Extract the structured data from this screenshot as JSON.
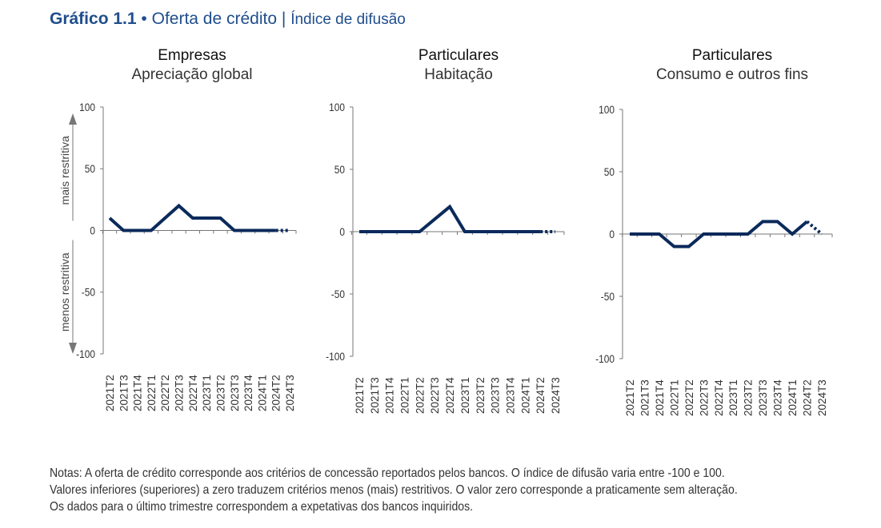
{
  "figure": {
    "number": "Gráfico 1.1",
    "bullet": "•",
    "title": "Oferta de crédito",
    "separator": "|",
    "subtitle": "Índice de difusão"
  },
  "axis_annotations": {
    "upper": "mais restritiva",
    "lower": "menos restritiva"
  },
  "chart_data": [
    {
      "type": "line",
      "title": "Empresas",
      "subtitle": "Apreciação global",
      "ylim": [
        -100,
        100
      ],
      "yticks": [
        100,
        50,
        0,
        -50,
        -100
      ],
      "categories": [
        "2021T2",
        "2021T3",
        "2021T4",
        "2022T1",
        "2022T2",
        "2022T3",
        "2022T4",
        "2023T1",
        "2023T2",
        "2023T3",
        "2023T4",
        "2024T1",
        "2024T2",
        "2024T3"
      ],
      "values": [
        10,
        0,
        0,
        0,
        10,
        20,
        10,
        10,
        10,
        0,
        0,
        0,
        0,
        0
      ],
      "last_point_expectation": true
    },
    {
      "type": "line",
      "title": "Particulares",
      "subtitle": "Habitação",
      "ylim": [
        -100,
        100
      ],
      "yticks": [
        100,
        50,
        0,
        -50,
        -100
      ],
      "categories": [
        "2021T2",
        "2021T3",
        "2021T4",
        "2022T1",
        "2022T2",
        "2022T3",
        "2022T4",
        "2023T1",
        "2023T2",
        "2023T3",
        "2023T4",
        "2024T1",
        "2024T2",
        "2024T3"
      ],
      "values": [
        0,
        0,
        0,
        0,
        0,
        10,
        20,
        0,
        0,
        0,
        0,
        0,
        0,
        0
      ],
      "last_point_expectation": true
    },
    {
      "type": "line",
      "title": "Particulares",
      "subtitle": "Consumo e outros fins",
      "ylim": [
        -100,
        100
      ],
      "yticks": [
        100,
        50,
        0,
        -50,
        -100
      ],
      "categories": [
        "2021T2",
        "2021T3",
        "2021T4",
        "2022T1",
        "2022T2",
        "2022T3",
        "2022T4",
        "2023T1",
        "2023T2",
        "2023T3",
        "2023T4",
        "2024T1",
        "2024T2",
        "2024T3"
      ],
      "values": [
        0,
        0,
        0,
        -10,
        -10,
        0,
        0,
        0,
        0,
        10,
        10,
        0,
        10,
        0
      ],
      "last_point_expectation": true
    }
  ],
  "colors": {
    "series": "#0b2a5b",
    "title": "#1f4e8c",
    "axis": "#777777"
  },
  "notes": [
    "Notas: A oferta de crédito corresponde aos critérios de concessão reportados pelos bancos. O índice de difusão varia entre -100 e 100.",
    "Valores inferiores (superiores) a zero traduzem critérios menos (mais) restritivos. O valor zero corresponde a praticamente sem alteração.",
    "Os dados para o último trimestre correspondem a expetativas dos bancos inquiridos."
  ]
}
